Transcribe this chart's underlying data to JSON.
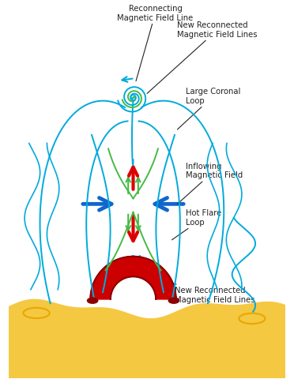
{
  "bg_color": "#ffffff",
  "sun_color": "#f5c842",
  "sun_border": "#e8a800",
  "flare_red": "#cc0000",
  "flare_dark_red": "#8b0000",
  "cyan_line": "#00aadd",
  "green_line": "#44bb44",
  "blue_arrow": "#1166cc",
  "red_arrow": "#dd0000",
  "text_color": "#222222",
  "labels": {
    "reconnecting": "Reconnecting\nMagnetic Field Line",
    "new_reconnected_top": "New Reconnected\nMagnetic Field Lines",
    "large_coronal": "Large Coronal\nLoop",
    "inflowing": "Inflowing\nMagnetic Field",
    "hot_flare": "Hot Flare\nLoop",
    "new_reconnected_bot": "New Reconnected\nMagnetic Field Lines"
  }
}
